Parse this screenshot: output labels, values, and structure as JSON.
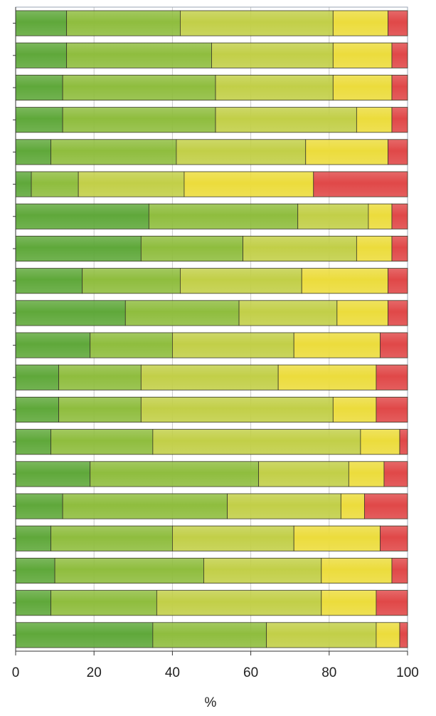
{
  "chart_data": {
    "type": "bar",
    "orientation": "horizontal",
    "stacked": true,
    "xlabel": "%",
    "ylabel": "",
    "xlim": [
      0,
      100
    ],
    "x_ticks": [
      "0",
      "20",
      "40",
      "60",
      "80",
      "100"
    ],
    "grid": "vertical",
    "legend": "none",
    "segment_colors": [
      "#5fa83a",
      "#8fbd3e",
      "#c2cf48",
      "#ecdc3c",
      "#e04848"
    ],
    "series": [
      {
        "values": [
          13,
          13,
          12,
          12,
          9,
          4,
          34,
          32,
          17,
          28,
          19,
          11,
          11,
          9,
          19,
          12,
          9,
          10,
          9,
          35
        ]
      },
      {
        "values": [
          29,
          37,
          39,
          39,
          32,
          12,
          38,
          26,
          25,
          29,
          21,
          21,
          21,
          26,
          43,
          42,
          31,
          38,
          27,
          29
        ]
      },
      {
        "values": [
          39,
          31,
          30,
          36,
          33,
          27,
          18,
          29,
          31,
          25,
          31,
          35,
          49,
          53,
          23,
          29,
          31,
          30,
          42,
          28
        ]
      },
      {
        "values": [
          14,
          15,
          15,
          9,
          21,
          33,
          6,
          9,
          22,
          13,
          22,
          25,
          11,
          10,
          9,
          6,
          22,
          18,
          14,
          6
        ]
      },
      {
        "values": [
          5,
          4,
          4,
          4,
          5,
          24,
          4,
          4,
          5,
          5,
          7,
          8,
          8,
          2,
          6,
          11,
          7,
          4,
          8,
          2
        ]
      }
    ]
  }
}
